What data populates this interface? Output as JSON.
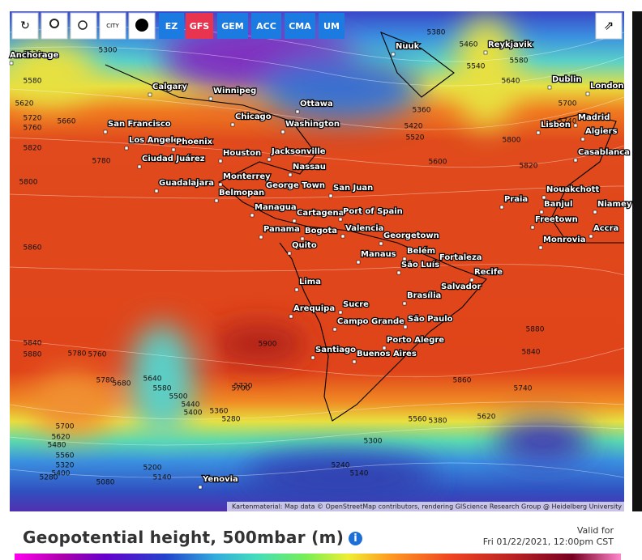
{
  "toolbar": {
    "city_icon": "CITY",
    "models": [
      "EZ",
      "GFS",
      "GEM",
      "ACC",
      "CMA",
      "UM"
    ]
  },
  "cities": [
    "Anchorage",
    "Calgary",
    "Winnipeg",
    "Nuuk",
    "Reykjavik",
    "Dublin",
    "London",
    "Ottawa",
    "Chicago",
    "Washington",
    "San Francisco",
    "Los Angeles",
    "Phoenix",
    "Houston",
    "Jacksonville",
    "Madrid",
    "Lisbon",
    "Algiers",
    "Casablanca",
    "Ciudad Juárez",
    "Nassau",
    "Guadalajara",
    "Monterrey",
    "George Town",
    "San Juan",
    "Belmopan",
    "Managua",
    "Cartagena",
    "Port of Spain",
    "Nouakchott",
    "Praia",
    "Banjul",
    "Niamey",
    "Freetown",
    "Panama",
    "Bogota",
    "Valencia",
    "Georgetown",
    "Accra",
    "Monrovia",
    "Quito",
    "Manaus",
    "Belém",
    "Fortaleza",
    "São Luís",
    "Recife",
    "Lima",
    "Salvador",
    "Brasília",
    "Arequipa",
    "Sucre",
    "Campo Grande",
    "São Paulo",
    "Porto Alegre",
    "Santiago",
    "Buenos Aires",
    "Yenovia"
  ],
  "contour_labels": [
    5520,
    5580,
    5620,
    5660,
    5720,
    5760,
    5780,
    5820,
    5800,
    5300,
    5380,
    5460,
    5540,
    5580,
    5640,
    5700,
    5740,
    5800,
    5820,
    5840,
    5860,
    5880,
    5900,
    5780,
    5700,
    5640,
    5580,
    5500,
    5440,
    5400,
    5360,
    5280,
    5200,
    5140,
    5280,
    5320,
    5400,
    5480,
    5560,
    5620,
    5700,
    5760,
    5780,
    5680,
    5600,
    5520,
    5420,
    5360,
    5080,
    5140,
    5240,
    5300,
    5380,
    5560,
    5620,
    5840,
    5880,
    5860,
    5740,
    5720
  ],
  "attribution": "Kartenmaterial: Map data © OpenStreetMap contributors, rendering GIScience Research Group @ Heidelberg University",
  "footer": {
    "title": "Geopotential height, 500mbar (m)",
    "valid_label": "Valid for",
    "valid_time": "Fri 01/22/2021, 12:00pm CST"
  }
}
